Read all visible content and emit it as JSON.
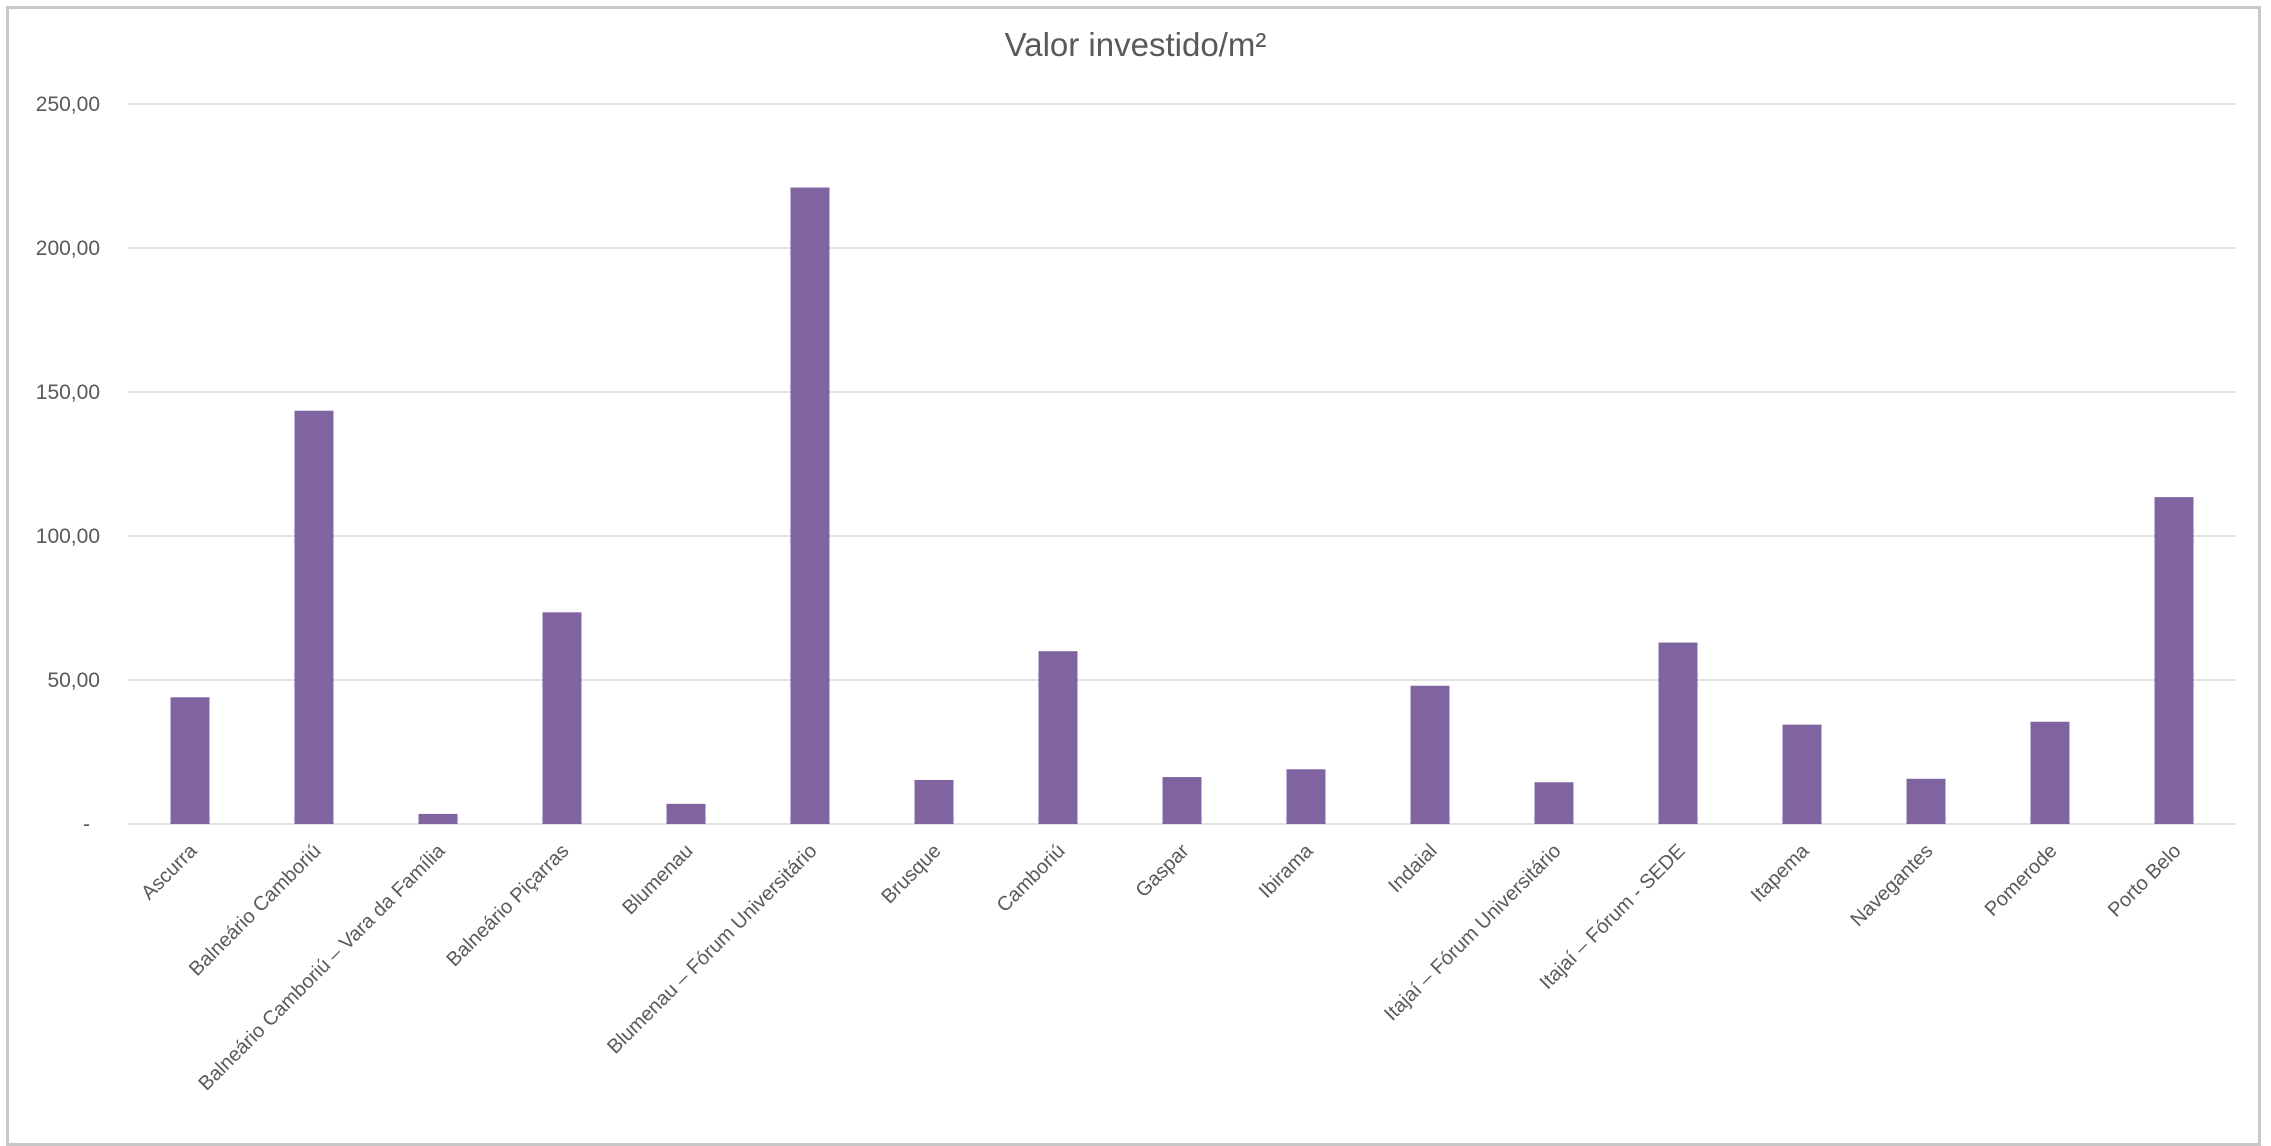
{
  "chart_data": {
    "type": "bar",
    "title": "Valor investido/m²",
    "xlabel": "",
    "ylabel": "",
    "ylim": [
      0,
      250
    ],
    "yticks": [
      0,
      50,
      100,
      150,
      200,
      250
    ],
    "ytick_labels": [
      "-",
      "50,00",
      "100,00",
      "150,00",
      "200,00",
      "250,00"
    ],
    "grid": true,
    "legend": "none",
    "categories": [
      "Ascurra",
      "Balneário Camboriú",
      "Balneário Camboriú – Vara da Família",
      "Balneário Piçarras",
      "Blumenau",
      "Blumenau – Fórum Universitário",
      "Brusque",
      "Camboriú",
      "Gaspar",
      "Ibirama",
      "Indaial",
      "Itajaí – Fórum Universitário",
      "Itajaí – Fórum - SEDE",
      "Itapema",
      "Navegantes",
      "Pomerode",
      "Porto Belo"
    ],
    "values": [
      44,
      143.5,
      3.5,
      73.5,
      7,
      221,
      15.3,
      60,
      16.3,
      19,
      48,
      14.5,
      63,
      34.5,
      15.7,
      35.5,
      113.5
    ],
    "colors": {
      "bar": "#8064a2",
      "gridline": "#d9d9d9",
      "text": "#595959"
    }
  }
}
